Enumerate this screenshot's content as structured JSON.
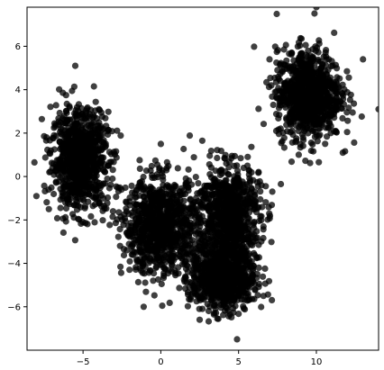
{
  "chart_data": {
    "type": "scatter",
    "title": "",
    "xlabel": "",
    "ylabel": "",
    "xlim": [
      -8.6,
      14.0
    ],
    "ylim": [
      -8.0,
      7.8
    ],
    "xticks": [
      -5,
      0,
      5,
      10
    ],
    "yticks": [
      -6,
      -4,
      -2,
      0,
      2,
      4,
      6
    ],
    "xtick_labels": [
      "−5",
      "0",
      "5",
      "10"
    ],
    "ytick_labels": [
      "−6",
      "−4",
      "−2",
      "0",
      "2",
      "4",
      "6"
    ],
    "grid": false,
    "legend": "none",
    "marker_color": "#000000",
    "marker_alpha": 0.75,
    "series": [
      {
        "cluster_centers": [
          [
            -5.2,
            0.8
          ],
          [
            0.0,
            -2.3
          ],
          [
            4.3,
            -1.7
          ],
          [
            4.0,
            -4.6
          ],
          [
            9.5,
            3.8
          ]
        ],
        "cluster_spread": [
          [
            1.0,
            1.25
          ],
          [
            1.35,
            1.2
          ],
          [
            1.15,
            1.25
          ],
          [
            1.15,
            0.9
          ],
          [
            1.15,
            1.15
          ]
        ],
        "points_per_cluster": [
          900,
          900,
          800,
          800,
          900
        ],
        "outliers": [
          [
            -5.5,
            5.1
          ],
          [
            -8.0,
            -0.9
          ],
          [
            13.0,
            5.4
          ],
          [
            14.0,
            3.1
          ],
          [
            -1.1,
            -6.0
          ],
          [
            10.0,
            7.8
          ],
          [
            4.9,
            -7.5
          ],
          [
            -7.2,
            -1.5
          ],
          [
            -2.2,
            -2.6
          ],
          [
            2.5,
            -6.6
          ],
          [
            6.6,
            -5.5
          ],
          [
            11.7,
            1.1
          ],
          [
            -3.7,
            2.2
          ],
          [
            0.0,
            1.5
          ],
          [
            7.5,
            4.9
          ]
        ]
      }
    ]
  }
}
